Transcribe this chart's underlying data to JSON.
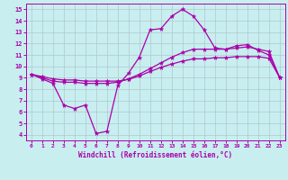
{
  "xlabel": "Windchill (Refroidissement éolien,°C)",
  "xlim": [
    -0.5,
    23.5
  ],
  "ylim": [
    3.5,
    15.5
  ],
  "xticks": [
    0,
    1,
    2,
    3,
    4,
    5,
    6,
    7,
    8,
    9,
    10,
    11,
    12,
    13,
    14,
    15,
    16,
    17,
    18,
    19,
    20,
    21,
    22,
    23
  ],
  "yticks": [
    4,
    5,
    6,
    7,
    8,
    9,
    10,
    11,
    12,
    13,
    14,
    15
  ],
  "background_color": "#c8eef0",
  "grid_color": "#b0c8cc",
  "line_color": "#aa00aa",
  "line1_x": [
    0,
    1,
    2,
    3,
    4,
    5,
    6,
    7,
    8,
    9,
    10,
    11,
    12,
    13,
    14,
    15,
    16,
    17,
    18,
    19,
    20,
    21,
    22,
    23
  ],
  "line1_y": [
    9.3,
    8.9,
    8.5,
    6.6,
    6.3,
    6.6,
    4.1,
    4.3,
    8.3,
    9.4,
    10.8,
    13.2,
    13.3,
    14.4,
    15.0,
    14.4,
    13.2,
    11.6,
    11.5,
    11.8,
    11.9,
    11.4,
    11.0,
    9.0
  ],
  "line2_x": [
    0,
    1,
    2,
    3,
    4,
    5,
    6,
    7,
    8,
    9,
    10,
    11,
    12,
    13,
    14,
    15,
    16,
    17,
    18,
    19,
    20,
    21,
    22,
    23
  ],
  "line2_y": [
    9.3,
    9.0,
    8.7,
    8.6,
    8.6,
    8.5,
    8.5,
    8.5,
    8.6,
    8.9,
    9.3,
    9.8,
    10.3,
    10.8,
    11.2,
    11.5,
    11.5,
    11.5,
    11.5,
    11.6,
    11.7,
    11.5,
    11.3,
    9.0
  ],
  "line3_x": [
    0,
    1,
    2,
    3,
    4,
    5,
    6,
    7,
    8,
    9,
    10,
    11,
    12,
    13,
    14,
    15,
    16,
    17,
    18,
    19,
    20,
    21,
    22,
    23
  ],
  "line3_y": [
    9.3,
    9.1,
    8.9,
    8.8,
    8.8,
    8.7,
    8.7,
    8.7,
    8.7,
    8.85,
    9.15,
    9.55,
    9.9,
    10.2,
    10.45,
    10.65,
    10.65,
    10.75,
    10.75,
    10.85,
    10.85,
    10.85,
    10.7,
    9.0
  ]
}
